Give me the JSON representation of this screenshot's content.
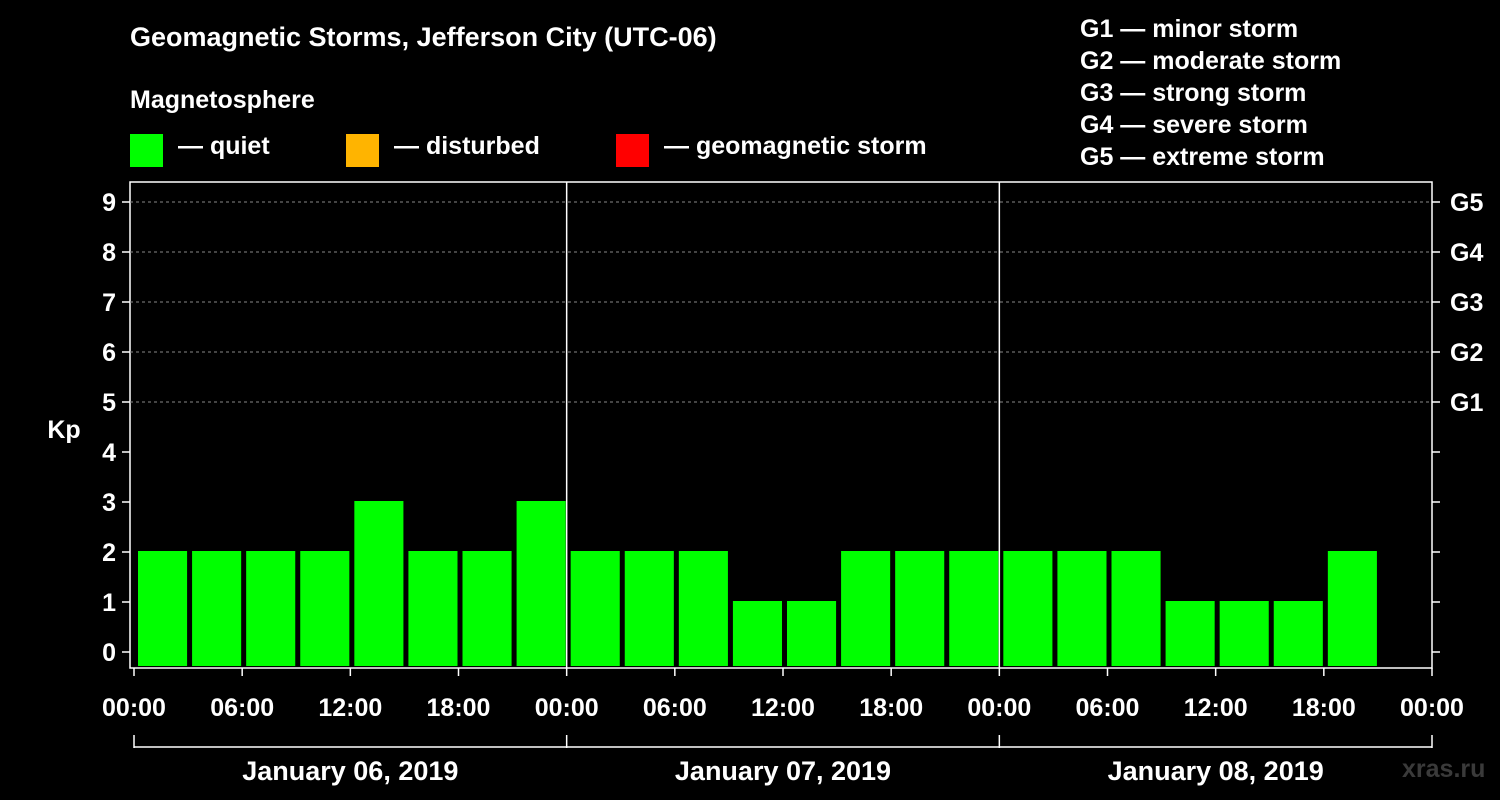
{
  "title": "Geomagnetic Storms, Jefferson City (UTC-06)",
  "subtitle": "Magnetosphere",
  "legend": [
    {
      "label": "— quiet",
      "color": "#00ff00"
    },
    {
      "label": "— disturbed",
      "color": "#ffb400"
    },
    {
      "label": "— geomagnetic storm",
      "color": "#ff0000"
    }
  ],
  "storm_scale": [
    "G1 — minor storm",
    "G2 — moderate storm",
    "G3 — strong storm",
    "G4 — severe storm",
    "G5 — extreme storm"
  ],
  "watermark": "xras.ru",
  "chart_data": {
    "type": "bar",
    "ylabel": "Kp",
    "ylim": [
      0,
      9
    ],
    "y_ticks": [
      "0",
      "1",
      "2",
      "3",
      "4",
      "5",
      "6",
      "7",
      "8",
      "9"
    ],
    "right_ticks": [
      {
        "value": 5,
        "label": "G1"
      },
      {
        "value": 6,
        "label": "G2"
      },
      {
        "value": 7,
        "label": "G3"
      },
      {
        "value": 8,
        "label": "G4"
      },
      {
        "value": 9,
        "label": "G5"
      }
    ],
    "x_tick_labels": [
      "00:00",
      "06:00",
      "12:00",
      "18:00",
      "00:00",
      "06:00",
      "12:00",
      "18:00",
      "00:00",
      "06:00",
      "12:00",
      "18:00",
      "00:00"
    ],
    "days": [
      "January 06, 2019",
      "January 07, 2019",
      "January 08, 2019"
    ],
    "bar_hours": 3,
    "values": [
      2,
      2,
      2,
      2,
      3,
      2,
      2,
      3,
      2,
      2,
      2,
      1,
      1,
      2,
      2,
      2,
      2,
      2,
      2,
      1,
      1,
      1,
      2
    ],
    "quiet_color": "#00ff00",
    "grid": "dashed at Kp 5–9"
  }
}
